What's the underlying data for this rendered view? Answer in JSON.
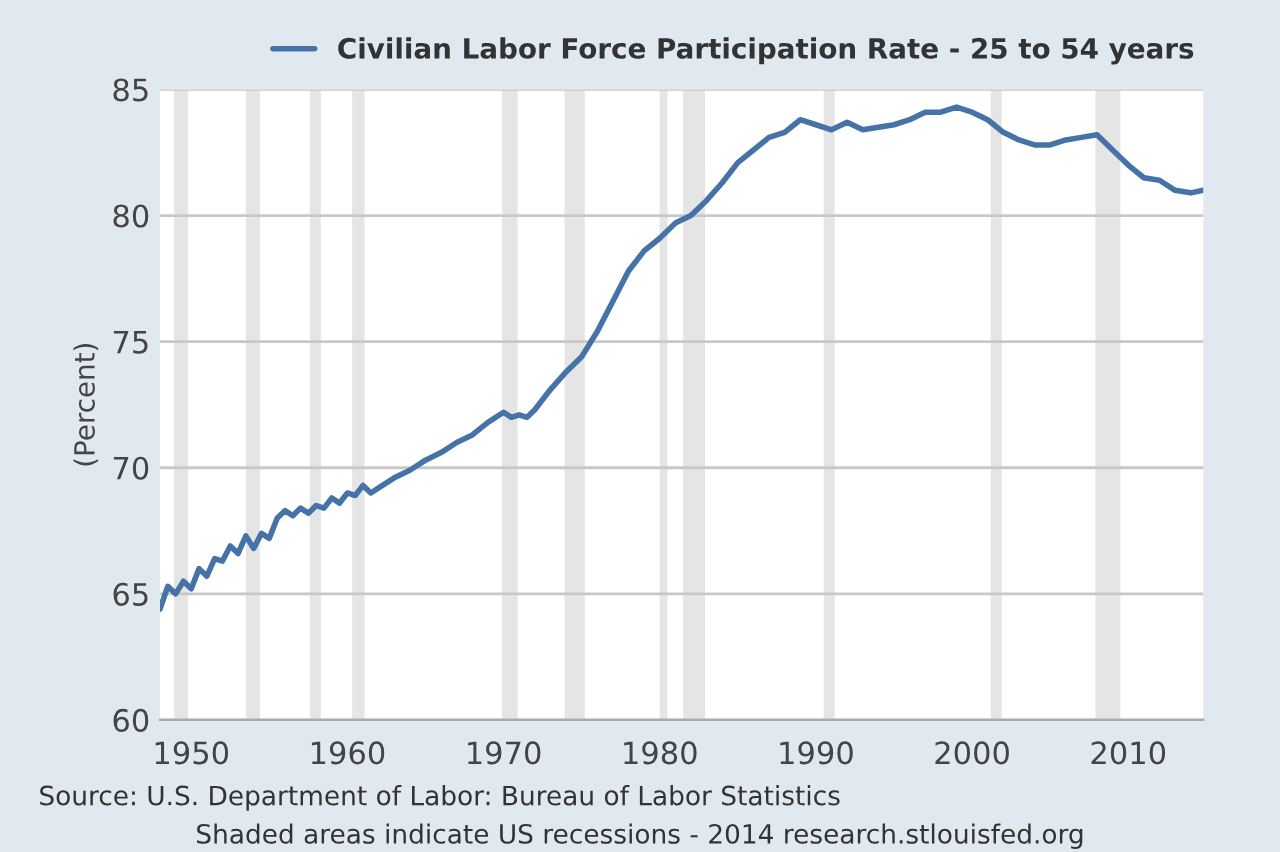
{
  "chart_data": {
    "type": "line",
    "ylabel": "(Percent)",
    "x": [
      1948.0,
      1948.5,
      1949.0,
      1949.5,
      1950.0,
      1950.5,
      1951.0,
      1951.5,
      1952.0,
      1952.5,
      1953.0,
      1953.5,
      1954.0,
      1954.5,
      1955.0,
      1955.5,
      1956.0,
      1956.5,
      1957.0,
      1957.5,
      1958.0,
      1958.5,
      1959.0,
      1959.5,
      1960.0,
      1960.5,
      1961.0,
      1961.5,
      1962.0,
      1963.0,
      1964.0,
      1965.0,
      1966.0,
      1967.0,
      1968.0,
      1969.0,
      1970.0,
      1970.5,
      1971.0,
      1971.5,
      1972.0,
      1973.0,
      1974.0,
      1975.0,
      1976.0,
      1977.0,
      1978.0,
      1979.0,
      1980.0,
      1981.0,
      1982.0,
      1983.0,
      1984.0,
      1985.0,
      1986.0,
      1987.0,
      1988.0,
      1989.0,
      1990.0,
      1991.0,
      1992.0,
      1993.0,
      1994.0,
      1995.0,
      1996.0,
      1997.0,
      1998.0,
      1999.0,
      2000.0,
      2001.0,
      2002.0,
      2003.0,
      2004.0,
      2005.0,
      2006.0,
      2007.0,
      2008.0,
      2009.0,
      2010.0,
      2011.0,
      2012.0,
      2013.0,
      2014.0,
      2014.8
    ],
    "series": [
      {
        "name": "Civilian Labor Force Participation Rate - 25 to 54 years",
        "color": "#4572a7",
        "values": [
          64.4,
          65.3,
          65.0,
          65.5,
          65.2,
          66.0,
          65.7,
          66.4,
          66.3,
          66.9,
          66.6,
          67.3,
          66.8,
          67.4,
          67.2,
          68.0,
          68.3,
          68.1,
          68.4,
          68.2,
          68.5,
          68.4,
          68.8,
          68.6,
          69.0,
          68.9,
          69.3,
          69.0,
          69.2,
          69.6,
          69.9,
          70.3,
          70.6,
          71.0,
          71.3,
          71.8,
          72.2,
          72.0,
          72.1,
          72.0,
          72.3,
          73.1,
          73.8,
          74.4,
          75.4,
          76.6,
          77.8,
          78.6,
          79.1,
          79.7,
          80.0,
          80.6,
          81.3,
          82.1,
          82.6,
          83.1,
          83.3,
          83.8,
          83.6,
          83.4,
          83.7,
          83.4,
          83.5,
          83.6,
          83.8,
          84.1,
          84.1,
          84.3,
          84.1,
          83.8,
          83.3,
          83.0,
          82.8,
          82.8,
          83.0,
          83.1,
          83.2,
          82.6,
          82.0,
          81.5,
          81.4,
          81.0,
          80.9,
          81.0
        ]
      }
    ],
    "xlim": [
      1948,
      2014.8
    ],
    "ylim": [
      60,
      85
    ],
    "xticks": [
      1950,
      1960,
      1970,
      1980,
      1990,
      2000,
      2010
    ],
    "yticks": [
      60,
      65,
      70,
      75,
      80,
      85
    ],
    "grid": "y",
    "legend": "top",
    "line_style": "solid",
    "marker": "none",
    "bands": [
      {
        "axis": "x",
        "from": 1948.9,
        "to": 1949.8,
        "color": "#e5e5e5"
      },
      {
        "axis": "x",
        "from": 1953.5,
        "to": 1954.4,
        "color": "#e5e5e5"
      },
      {
        "axis": "x",
        "from": 1957.6,
        "to": 1958.3,
        "color": "#e5e5e5"
      },
      {
        "axis": "x",
        "from": 1960.3,
        "to": 1961.1,
        "color": "#e5e5e5"
      },
      {
        "axis": "x",
        "from": 1969.9,
        "to": 1970.9,
        "color": "#e5e5e5"
      },
      {
        "axis": "x",
        "from": 1973.9,
        "to": 1975.2,
        "color": "#e5e5e5"
      },
      {
        "axis": "x",
        "from": 1980.0,
        "to": 1980.5,
        "color": "#e5e5e5"
      },
      {
        "axis": "x",
        "from": 1981.5,
        "to": 1982.9,
        "color": "#e5e5e5"
      },
      {
        "axis": "x",
        "from": 1990.5,
        "to": 1991.2,
        "color": "#e5e5e5"
      },
      {
        "axis": "x",
        "from": 2001.2,
        "to": 2001.9,
        "color": "#e5e5e5"
      },
      {
        "axis": "x",
        "from": 2007.9,
        "to": 2009.5,
        "color": "#e5e5e5"
      }
    ],
    "annotations": [
      "Source: U.S. Department of Labor: Bureau of Labor Statistics",
      "Shaded areas indicate US recessions - 2014 research.stlouisfed.org"
    ]
  }
}
